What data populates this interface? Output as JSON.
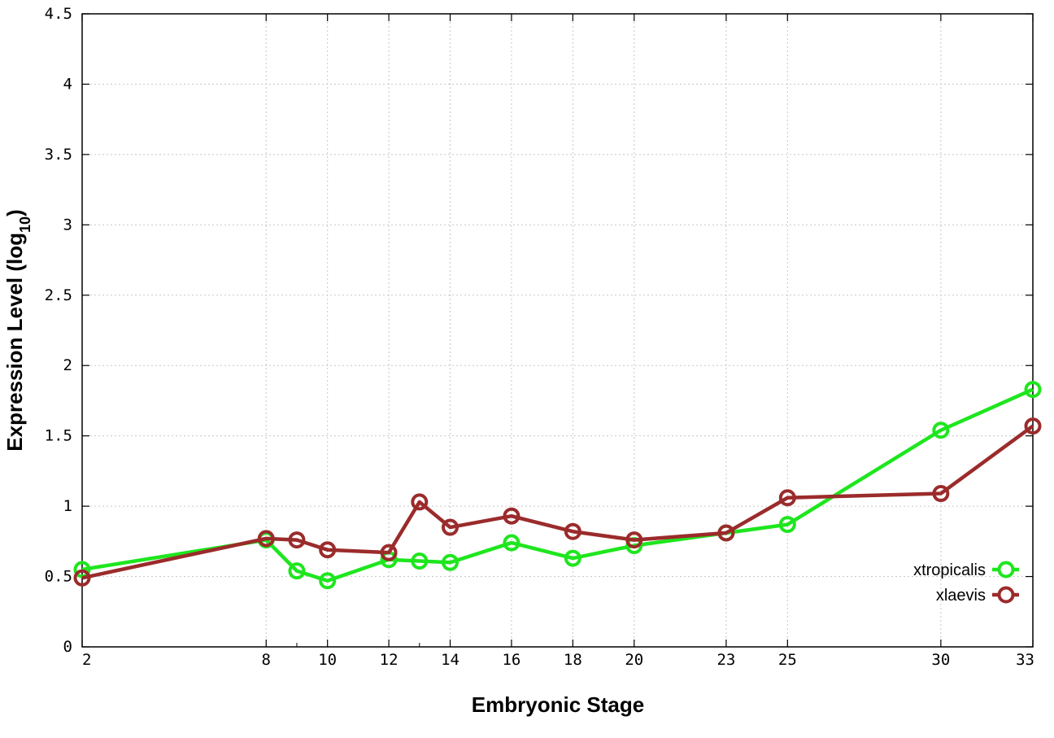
{
  "chart_data": {
    "type": "line",
    "xlabel": "Embryonic Stage",
    "ylabel_main": "Expression Level (log",
    "ylabel_sub": "10",
    "ylabel_close": ")",
    "xlim": [
      2,
      33
    ],
    "ylim": [
      0,
      4.5
    ],
    "x_ticks": [
      2,
      8,
      10,
      12,
      14,
      16,
      18,
      20,
      23,
      25,
      30,
      33
    ],
    "x_tick_labels": [
      "2",
      "8",
      "10",
      "12",
      "14",
      "16",
      "18",
      "20",
      "23",
      "25",
      "30",
      "33"
    ],
    "y_ticks": [
      0,
      0.5,
      1,
      1.5,
      2,
      2.5,
      3,
      3.5,
      4,
      4.5
    ],
    "y_tick_labels": [
      "0",
      "0.5",
      "1",
      "1.5",
      "2",
      "2.5",
      "3",
      "3.5",
      "4",
      "4.5"
    ],
    "x_minor_ticks": [
      9,
      13
    ],
    "grid": true,
    "legend_position": "bottom-right",
    "series": [
      {
        "name": "xtropicalis",
        "color": "#1ee61e",
        "x": [
          2,
          8,
          9,
          10,
          12,
          13,
          14,
          16,
          18,
          20,
          23,
          25,
          30,
          33
        ],
        "y": [
          0.55,
          0.76,
          0.54,
          0.47,
          0.62,
          0.61,
          0.6,
          0.74,
          0.63,
          0.72,
          0.81,
          0.87,
          1.54,
          1.83
        ]
      },
      {
        "name": "xlaevis",
        "color": "#9b2b2b",
        "x": [
          2,
          8,
          9,
          10,
          12,
          13,
          14,
          16,
          18,
          20,
          23,
          25,
          30,
          33
        ],
        "y": [
          0.49,
          0.77,
          0.76,
          0.69,
          0.67,
          1.03,
          0.85,
          0.93,
          0.82,
          0.76,
          0.81,
          1.06,
          1.09,
          1.57
        ]
      }
    ]
  }
}
